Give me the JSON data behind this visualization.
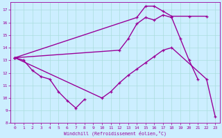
{
  "xlabel": "Windchill (Refroidissement éolien,°C)",
  "xlim": [
    -0.5,
    23.5
  ],
  "ylim": [
    8,
    17.6
  ],
  "yticks": [
    8,
    9,
    10,
    11,
    12,
    13,
    14,
    15,
    16,
    17
  ],
  "xticks": [
    0,
    1,
    2,
    3,
    4,
    5,
    6,
    7,
    8,
    9,
    10,
    11,
    12,
    13,
    14,
    15,
    16,
    17,
    18,
    19,
    20,
    21,
    22,
    23
  ],
  "bg_color": "#cceeff",
  "line_color": "#990099",
  "grid_color": "#aadddd",
  "curves": [
    {
      "x": [
        0,
        1,
        2,
        3,
        4,
        5,
        6,
        7,
        8
      ],
      "y": [
        13.2,
        13.0,
        12.2,
        11.7,
        11.5,
        10.5,
        9.8,
        9.2,
        9.9
      ]
    },
    {
      "x": [
        0,
        10,
        11,
        12,
        13,
        14,
        15,
        16,
        17,
        18,
        22,
        23
      ],
      "y": [
        13.2,
        10.0,
        10.5,
        11.2,
        11.8,
        12.3,
        12.8,
        13.3,
        13.8,
        14.0,
        11.5,
        8.5
      ]
    },
    {
      "x": [
        0,
        12,
        13,
        14,
        15,
        16,
        17,
        18,
        19,
        20,
        21
      ],
      "y": [
        13.2,
        13.8,
        14.7,
        15.9,
        16.4,
        16.2,
        16.6,
        16.4,
        14.7,
        13.0,
        11.5
      ]
    },
    {
      "x": [
        0,
        14,
        15,
        16,
        17,
        18,
        20,
        22
      ],
      "y": [
        13.2,
        16.4,
        17.3,
        17.3,
        16.9,
        16.5,
        16.5,
        16.5
      ]
    }
  ]
}
